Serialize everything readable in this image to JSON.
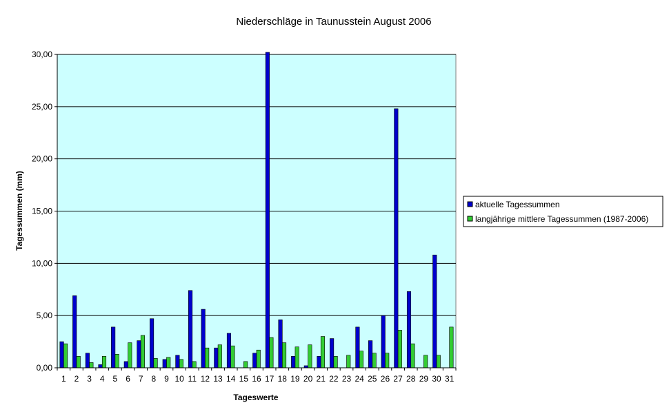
{
  "chart_data": {
    "type": "bar",
    "title": "Niederschläge in Taunusstein  August  2006",
    "xlabel": "Tageswerte",
    "ylabel": "Tagessummen (mm)",
    "ylim": [
      0,
      30
    ],
    "yticks": [
      "0,00",
      "5,00",
      "10,00",
      "15,00",
      "20,00",
      "25,00",
      "30,00"
    ],
    "ytick_values": [
      0,
      5,
      10,
      15,
      20,
      25,
      30
    ],
    "grid": true,
    "legend_position": "right",
    "plot_background": "#ccffff",
    "categories": [
      "1",
      "2",
      "3",
      "4",
      "5",
      "6",
      "7",
      "8",
      "9",
      "10",
      "11",
      "12",
      "13",
      "14",
      "15",
      "16",
      "17",
      "18",
      "19",
      "20",
      "21",
      "22",
      "23",
      "24",
      "25",
      "26",
      "27",
      "28",
      "29",
      "30",
      "31"
    ],
    "series": [
      {
        "name": "aktuelle Tagessummen",
        "color": "#0000cc",
        "values": [
          2.5,
          6.9,
          1.4,
          0.3,
          3.9,
          0.6,
          2.6,
          4.7,
          0.8,
          1.2,
          7.4,
          5.6,
          1.9,
          3.3,
          0.0,
          1.4,
          30.2,
          4.6,
          1.1,
          0.2,
          1.1,
          2.8,
          0.0,
          3.9,
          2.6,
          5.0,
          24.8,
          7.3,
          0.0,
          10.8,
          0.0
        ]
      },
      {
        "name": "langjährige mittlere Tagessummen (1987-2006)",
        "color": "#33cc33",
        "values": [
          2.3,
          1.1,
          0.5,
          1.1,
          1.3,
          2.4,
          3.1,
          0.9,
          1.0,
          0.8,
          0.6,
          1.9,
          2.2,
          2.1,
          0.6,
          1.7,
          2.9,
          2.4,
          2.0,
          2.2,
          3.0,
          1.1,
          1.2,
          1.6,
          1.4,
          1.4,
          3.6,
          2.3,
          1.2,
          1.2,
          3.9
        ]
      }
    ]
  }
}
